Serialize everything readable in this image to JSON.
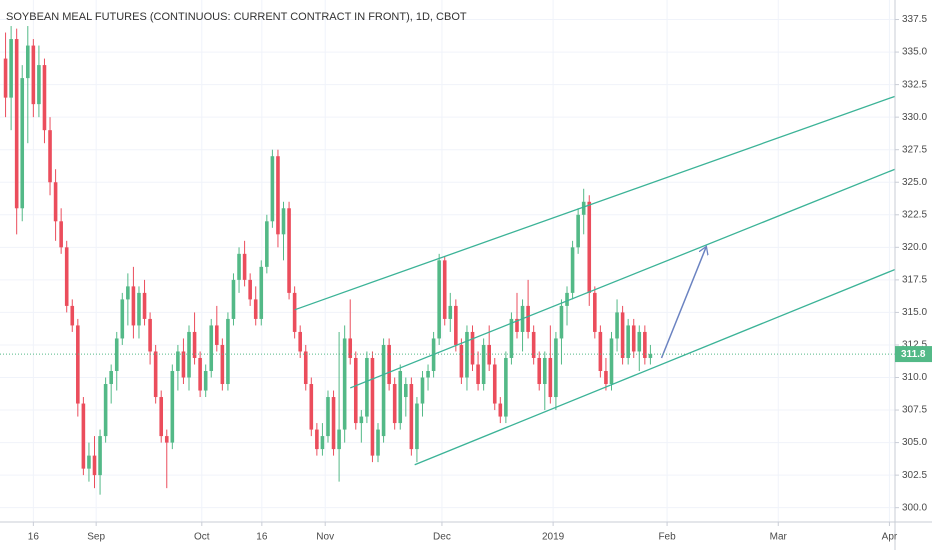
{
  "chart_data": {
    "type": "candlestick",
    "title": "SOYBEAN MEAL FUTURES (CONTINUOUS: CURRENT CONTRACT IN FRONT), 1D, CBOT",
    "up_color": "#53b987",
    "down_color": "#eb4d5c",
    "trend_color": "#3bb397",
    "arrow_color": "#6b83c1",
    "grid": true,
    "xlim": [
      -1,
      160
    ],
    "ylim": [
      298.9,
      339.0
    ],
    "xticks": [
      {
        "value": 5,
        "label": "16"
      },
      {
        "value": 16.3,
        "label": "Sep"
      },
      {
        "value": 35.3,
        "label": "Oct"
      },
      {
        "value": 46.1,
        "label": "16"
      },
      {
        "value": 57.5,
        "label": "Nov"
      },
      {
        "value": 78.5,
        "label": "Dec"
      },
      {
        "value": 98.5,
        "label": "2019"
      },
      {
        "value": 119,
        "label": "Feb"
      },
      {
        "value": 139,
        "label": "Mar"
      },
      {
        "value": 159,
        "label": "Apr"
      }
    ],
    "yticks": [
      {
        "value": 300,
        "label": "300.0"
      },
      302.5,
      {
        "value": 305,
        "label": "305.0"
      },
      307.5,
      {
        "value": 310,
        "label": "310.0"
      },
      312.5,
      {
        "value": 315,
        "label": "315.0"
      },
      317.5,
      {
        "value": 320,
        "label": "320.0"
      },
      322.5,
      {
        "value": 325,
        "label": "325.0"
      },
      327.5,
      {
        "value": 330,
        "label": "330.0"
      },
      332.5,
      {
        "value": 335,
        "label": "335.0"
      },
      337.5
    ],
    "last_price": 311.8,
    "x": [
      0,
      1,
      2,
      3,
      4,
      5,
      6,
      7,
      8,
      9,
      10,
      11,
      12,
      13,
      14,
      15,
      16,
      17,
      18,
      19,
      20,
      21,
      22,
      23,
      24,
      25,
      26,
      27,
      28,
      29,
      30,
      31,
      32,
      33,
      34,
      35,
      36,
      37,
      38,
      39,
      40,
      41,
      42,
      43,
      44,
      45,
      46,
      47,
      48,
      49,
      50,
      51,
      52,
      53,
      54,
      55,
      56,
      57,
      58,
      59,
      60,
      61,
      62,
      63,
      64,
      65,
      66,
      67,
      68,
      69,
      70,
      71,
      72,
      73,
      74,
      75,
      76,
      77,
      78,
      79,
      80,
      81,
      82,
      83,
      84,
      85,
      86,
      87,
      88,
      89,
      90,
      91,
      92,
      93,
      94,
      95,
      96,
      97,
      98,
      99,
      100,
      101,
      102,
      103,
      104,
      105,
      106,
      107,
      108,
      109,
      110,
      111,
      112,
      113,
      114,
      115,
      116
    ],
    "open": [
      334.5,
      331.5,
      336,
      323,
      333,
      335.5,
      331,
      334,
      329,
      325,
      322,
      320,
      315.5,
      314,
      308,
      303,
      304,
      302.5,
      305.5,
      309.5,
      310.5,
      313,
      316,
      317,
      314,
      316.5,
      314.5,
      312,
      308.5,
      305.5,
      305,
      310.5,
      312,
      310,
      313.5,
      311.5,
      309,
      310.5,
      314,
      312.5,
      309.5,
      314.5,
      317.5,
      319.5,
      317.5,
      316,
      314.5,
      318.5,
      322,
      327,
      321,
      323,
      316.5,
      313.5,
      312,
      309.5,
      306,
      304.5,
      305.5,
      308.5,
      304.5,
      306,
      313,
      311.5,
      306.5,
      307,
      311.5,
      304,
      305.5,
      312.5,
      309.5,
      306.5,
      308.5,
      309.5,
      304.5,
      308,
      310,
      310.5,
      313,
      319,
      314.5,
      315.5,
      312.5,
      310,
      313.5,
      311,
      309.5,
      312.5,
      311,
      308,
      307,
      311.5,
      314.5,
      313.5,
      315.5,
      313.5,
      311.5,
      309.5,
      311.5,
      308.5,
      313,
      315.5,
      316.5,
      320,
      322.5,
      323.5,
      316.5,
      313.5,
      310.5,
      309.5,
      313,
      315,
      311.5,
      314,
      312,
      313.5,
      311.5
    ],
    "high": [
      336.5,
      337,
      336.8,
      334,
      337,
      336,
      335.5,
      334.5,
      330,
      326,
      323,
      320.5,
      316,
      314.5,
      308.5,
      305,
      305.5,
      306,
      310,
      311,
      313.5,
      316.5,
      318,
      318.5,
      317,
      317.5,
      315,
      312.5,
      309,
      306,
      311,
      312.5,
      313,
      314,
      315,
      312,
      311,
      314.5,
      315.5,
      313,
      315,
      318,
      320,
      320.5,
      318,
      317,
      319,
      322.5,
      327.5,
      327.5,
      323.5,
      323.5,
      317,
      314,
      312.5,
      310,
      306.5,
      306.5,
      309,
      309,
      313.5,
      314,
      316,
      312,
      307.5,
      312,
      312,
      306.5,
      313,
      313,
      310,
      311,
      310,
      310,
      308.5,
      310.5,
      311,
      313.5,
      319.5,
      319.3,
      316.5,
      316,
      313,
      314,
      314,
      312,
      313,
      314,
      311.5,
      308.5,
      312,
      315,
      316.5,
      316,
      317.5,
      314,
      312,
      312,
      314,
      313.5,
      316,
      317,
      320.5,
      323,
      324.5,
      324,
      317,
      314,
      311.5,
      313.5,
      316,
      315.5,
      314.5,
      314.5,
      314,
      314,
      312.5
    ],
    "low": [
      330,
      329,
      321,
      322,
      328,
      330,
      330,
      328,
      324,
      320.5,
      319.5,
      315,
      313.5,
      307,
      302.5,
      302,
      301.5,
      301,
      305,
      308,
      309,
      312.5,
      314,
      313,
      313,
      314,
      311,
      308,
      305,
      301.5,
      304.5,
      309,
      309.5,
      309,
      311,
      308.5,
      308.5,
      310,
      312,
      309,
      309,
      314,
      316.5,
      317,
      315.5,
      314,
      314,
      318,
      321.5,
      320,
      319,
      316,
      313,
      311.5,
      309,
      305.5,
      304,
      304,
      305,
      304,
      302,
      305,
      311,
      306,
      305,
      306.5,
      303.5,
      303.5,
      305,
      309,
      306,
      306,
      307,
      304,
      303.5,
      307,
      309,
      310,
      312.5,
      314,
      313.5,
      312,
      309.5,
      309,
      310.5,
      309,
      309,
      310.5,
      307.5,
      306.5,
      306.5,
      311,
      313,
      312,
      313,
      311,
      309,
      307.5,
      308,
      307.5,
      311,
      314,
      316,
      319.5,
      321,
      315.5,
      313,
      310,
      309,
      309,
      312,
      311,
      311,
      311.5,
      310.5,
      311,
      311
    ],
    "close": [
      331.5,
      336,
      323,
      333,
      335.5,
      331,
      334,
      329,
      325,
      322,
      320,
      315.5,
      314,
      308,
      303,
      304,
      302.5,
      305.5,
      309.5,
      310.5,
      313,
      316,
      317,
      314,
      316.5,
      314.5,
      312,
      308.5,
      305.5,
      305,
      310.5,
      312,
      310,
      313.5,
      311.5,
      309,
      310.5,
      314,
      312.5,
      309.5,
      314.5,
      317.5,
      319.5,
      317.5,
      316,
      314.5,
      318.5,
      322,
      327,
      321,
      323,
      316.5,
      313.5,
      312,
      309.5,
      306,
      304.5,
      305.5,
      308.5,
      304.5,
      306,
      313,
      311.5,
      306.5,
      307,
      311.5,
      304,
      306,
      312.5,
      309.5,
      306.5,
      310.5,
      309.5,
      304.5,
      308,
      310,
      310.5,
      313,
      319,
      314.5,
      315.5,
      312.5,
      310,
      313.5,
      311,
      309.5,
      312.5,
      311,
      308,
      307,
      311.5,
      314.5,
      313.5,
      315.5,
      313.5,
      311.5,
      309.5,
      311.5,
      308.5,
      313,
      315.5,
      316.5,
      320,
      322.5,
      323.5,
      316.5,
      313.5,
      310.5,
      309.5,
      313,
      315,
      311.5,
      314,
      312,
      313.5,
      311.5,
      311.8
    ],
    "trendlines": [
      {
        "x": [
          52,
          160
        ],
        "y": [
          315.2,
          331.6
        ]
      },
      {
        "x": [
          62,
          160
        ],
        "y": [
          309.2,
          326.0
        ]
      },
      {
        "x": [
          73.6,
          160
        ],
        "y": [
          303.3,
          318.3
        ]
      }
    ],
    "arrow": {
      "x": [
        118,
        126
      ],
      "y": [
        311.5,
        320.0
      ]
    }
  }
}
